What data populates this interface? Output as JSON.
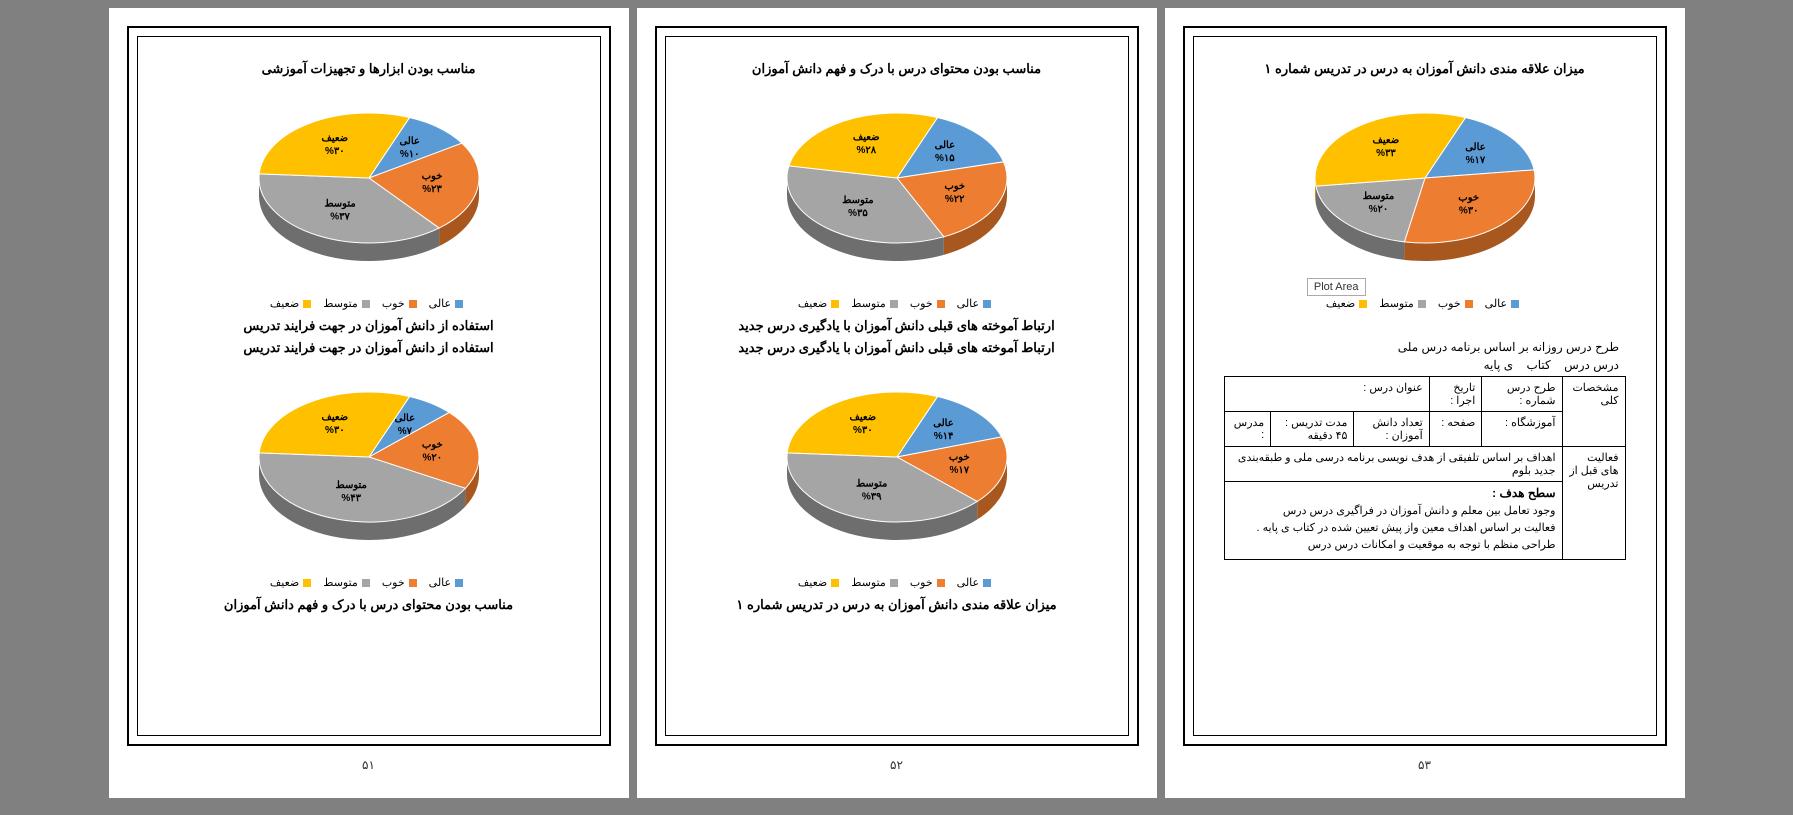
{
  "colors": {
    "excellent": "#5b9bd5",
    "good": "#ed7d31",
    "average": "#a5a5a5",
    "weak": "#ffc000",
    "excellent_dark": "#3a6a94",
    "good_dark": "#a8571f",
    "average_dark": "#6e6e6e",
    "weak_dark": "#b38600",
    "bg": "#ffffff",
    "border": "#000000"
  },
  "legend_labels": {
    "excellent": "عالی",
    "good": "خوب",
    "average": "متوسط",
    "weak": "ضعیف"
  },
  "plot_area_tooltip": "Plot Area",
  "charts": {
    "p3_chart1": {
      "title": "میزان علاقه مندی دانش آموزان به درس در تدریس شماره ۱",
      "slices": [
        {
          "label": "عالی",
          "value": 17,
          "pct": "%۱۷"
        },
        {
          "label": "خوب",
          "value": 30,
          "pct": "%۳۰"
        },
        {
          "label": "متوسط",
          "value": 20,
          "pct": "%۲۰"
        },
        {
          "label": "ضعیف",
          "value": 33,
          "pct": "%۳۳"
        }
      ]
    },
    "p2_chart1": {
      "title": "مناسب بودن محتوای درس با درک و فهم دانش آموزان",
      "slices": [
        {
          "label": "عالی",
          "value": 15,
          "pct": "%۱۵"
        },
        {
          "label": "خوب",
          "value": 22,
          "pct": "%۲۲"
        },
        {
          "label": "متوسط",
          "value": 35,
          "pct": "%۳۵"
        },
        {
          "label": "ضعیف",
          "value": 28,
          "pct": "%۲۸"
        }
      ]
    },
    "p2_chart2": {
      "title": "ارتباط آموخته های قبلی دانش آموزان با یادگیری درس جدید",
      "slices": [
        {
          "label": "عالی",
          "value": 14,
          "pct": "%۱۴"
        },
        {
          "label": "خوب",
          "value": 17,
          "pct": "%۱۷"
        },
        {
          "label": "متوسط",
          "value": 39,
          "pct": "%۳۹"
        },
        {
          "label": "ضعیف",
          "value": 30,
          "pct": "%۳۰"
        }
      ]
    },
    "p1_chart1": {
      "title": "مناسب بودن ابزارها و تجهیزات آموزشی",
      "slices": [
        {
          "label": "عالی",
          "value": 10,
          "pct": "%۱۰"
        },
        {
          "label": "خوب",
          "value": 23,
          "pct": "%۲۳"
        },
        {
          "label": "متوسط",
          "value": 37,
          "pct": "%۳۷"
        },
        {
          "label": "ضعیف",
          "value": 30,
          "pct": "%۳۰"
        }
      ]
    },
    "p1_chart2": {
      "title": "استفاده از دانش آموزان در جهت فرایند تدریس",
      "slices": [
        {
          "label": "عالی",
          "value": 7,
          "pct": "%۷"
        },
        {
          "label": "خوب",
          "value": 20,
          "pct": "%۲۰"
        },
        {
          "label": "متوسط",
          "value": 43,
          "pct": "%۴۳"
        },
        {
          "label": "ضعیف",
          "value": 30,
          "pct": "%۳۰"
        }
      ]
    }
  },
  "headings": {
    "p1_h1": "مناسب بودن ابزارها و تجهیزات آموزشی",
    "p1_h2": "استفاده از دانش آموزان در جهت فرایند تدریس",
    "p1_h3": "استفاده از دانش آموزان در جهت فرایند تدریس",
    "p1_h4": "مناسب بودن محتوای درس با درک و فهم دانش آموزان",
    "p2_h1": "مناسب بودن محتوای درس با درک و فهم دانش آموزان",
    "p2_h2": "ارتباط آموخته های قبلی دانش آموزان با یادگیری درس جدید",
    "p2_h3": "ارتباط آموخته های قبلی دانش آموزان با یادگیری درس جدید",
    "p2_h4": "میزان علاقه مندی دانش آموزان به درس در تدریس شماره ۱",
    "p3_h1": "میزان علاقه مندی دانش آموزان به درس در تدریس شماره ۱"
  },
  "plan": {
    "header1": "طرح درس روزانه بر اساس برنامه درس ملی",
    "header2_c1": "درس درس",
    "header2_c2": "کتاب",
    "header2_c3": "ی پایه",
    "r1_c1": "مشخصات کلی",
    "r1_c2": "طرح درس شماره :",
    "r1_c3": "تاریخ اجرا :",
    "r1_c4": "عنوان درس :",
    "r2_c1": "آموزشگاه :",
    "r2_c2": "صفحه :",
    "r2_c3": "تعداد دانش آموزان :",
    "r2_c4": "مدت تدریس : ۴۵ دقیقه",
    "r2_c5": "مدرس :",
    "r3_c1": "فعالیت های قبل از تدریس",
    "r3_text": "اهداف بر اساس تلفیقی از هدف نویسی برنامه درسی ملی و طبقه‌بندی جدید بلوم",
    "goal_title": "سطح هدف :",
    "goal1": "وجود تعامل بین معلم و دانش آموزان در فراگیری درس درس",
    "goal2": "فعالیت بر اساس اهداف معین واز پیش تعیین شده در کتاب       ی پایه .",
    "goal3": "طراحی منظم با توجه به موقعیت و امکانات درس درس"
  },
  "page_numbers": {
    "p1": "۵۱",
    "p2": "۵۲",
    "p3": "۵۳"
  }
}
